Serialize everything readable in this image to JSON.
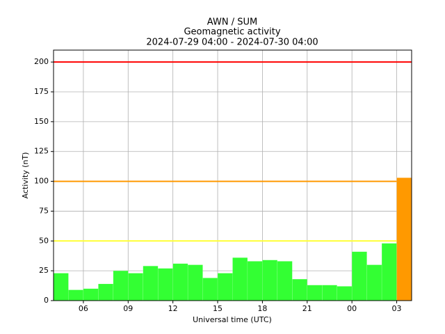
{
  "chart_data": {
    "type": "bar",
    "title": "AWN / SUM",
    "subtitle": "Geomagnetic activity",
    "period": "2024-07-29 04:00 - 2024-07-30 04:00",
    "xlabel": "Universal time (UTC)",
    "ylabel": "Activity (nT)",
    "x": [
      4,
      5,
      6,
      7,
      8,
      9,
      10,
      11,
      12,
      13,
      14,
      15,
      16,
      17,
      18,
      19,
      20,
      21,
      22,
      23,
      24,
      25,
      26,
      27
    ],
    "values": [
      23,
      9,
      10,
      14,
      25,
      23,
      29,
      27,
      31,
      30,
      19,
      23,
      36,
      33,
      34,
      33,
      18,
      13,
      13,
      12,
      41,
      30,
      48,
      103
    ],
    "colors": [
      "#33ff33",
      "#33ff33",
      "#33ff33",
      "#33ff33",
      "#33ff33",
      "#33ff33",
      "#33ff33",
      "#33ff33",
      "#33ff33",
      "#33ff33",
      "#33ff33",
      "#33ff33",
      "#33ff33",
      "#33ff33",
      "#33ff33",
      "#33ff33",
      "#33ff33",
      "#33ff33",
      "#33ff33",
      "#33ff33",
      "#33ff33",
      "#33ff33",
      "#33ff33",
      "#ff9900"
    ],
    "thresholds": [
      {
        "value": 200,
        "color": "#ff0000"
      },
      {
        "value": 100,
        "color": "#ff9900"
      },
      {
        "value": 50,
        "color": "#ffff33"
      }
    ],
    "xlim": [
      4,
      28
    ],
    "xticks": [
      {
        "value": 6,
        "label": "06"
      },
      {
        "value": 9,
        "label": "09"
      },
      12,
      15,
      18,
      21,
      {
        "value": 24,
        "label": "00"
      },
      {
        "value": 27,
        "label": "03"
      }
    ],
    "ylim": [
      0,
      210
    ],
    "yticks": [
      0,
      25,
      50,
      75,
      100,
      125,
      150,
      175,
      200
    ],
    "grid": true
  }
}
